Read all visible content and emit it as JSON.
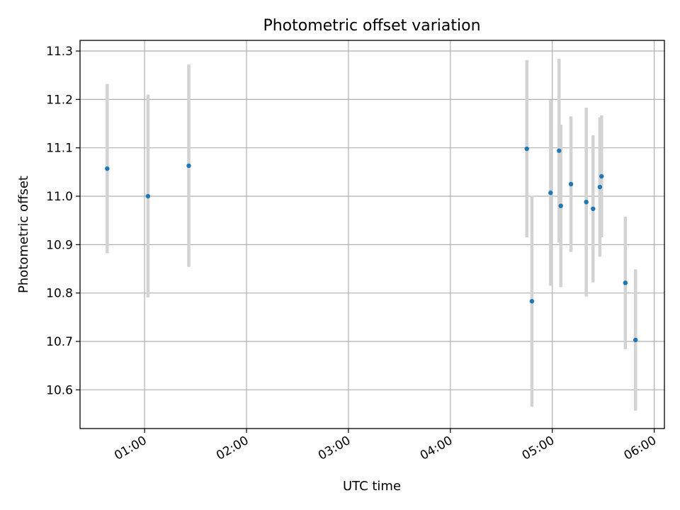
{
  "chart_data": {
    "type": "scatter",
    "title": "Photometric offset variation",
    "xlabel": "UTC time",
    "ylabel": "Photometric offset",
    "x_unit": "UTC time (HH:MM)",
    "xlim": [
      "00:22",
      "06:06"
    ],
    "ylim": [
      10.52,
      11.322
    ],
    "grid": true,
    "marker_color": "#1f77b4",
    "errorbar_color": "#d3d3d3",
    "x_ticks": [
      "01:00",
      "02:00",
      "03:00",
      "04:00",
      "05:00",
      "06:00"
    ],
    "y_ticks": [
      "10.6",
      "10.7",
      "10.8",
      "10.9",
      "11.0",
      "11.1",
      "11.2",
      "11.3"
    ],
    "points": [
      {
        "x": "00:38",
        "y": 11.057,
        "low": 10.882,
        "high": 11.232
      },
      {
        "x": "01:02",
        "y": 11.0,
        "low": 10.791,
        "high": 11.21
      },
      {
        "x": "01:26",
        "y": 11.063,
        "low": 10.854,
        "high": 11.272
      },
      {
        "x": "04:45",
        "y": 11.098,
        "low": 10.915,
        "high": 11.281
      },
      {
        "x": "04:48",
        "y": 10.783,
        "low": 10.565,
        "high": 11.001
      },
      {
        "x": "04:59",
        "y": 11.007,
        "low": 10.815,
        "high": 11.199
      },
      {
        "x": "05:04",
        "y": 11.094,
        "low": 10.904,
        "high": 11.284
      },
      {
        "x": "05:05",
        "y": 10.98,
        "low": 10.812,
        "high": 11.148
      },
      {
        "x": "05:11",
        "y": 11.025,
        "low": 10.885,
        "high": 11.165
      },
      {
        "x": "05:20",
        "y": 10.988,
        "low": 10.793,
        "high": 11.183
      },
      {
        "x": "05:24",
        "y": 10.974,
        "low": 10.822,
        "high": 11.126
      },
      {
        "x": "05:28",
        "y": 11.019,
        "low": 10.875,
        "high": 11.163
      },
      {
        "x": "05:29",
        "y": 11.041,
        "low": 10.915,
        "high": 11.167
      },
      {
        "x": "05:43",
        "y": 10.821,
        "low": 10.684,
        "high": 10.958
      },
      {
        "x": "05:49",
        "y": 10.703,
        "low": 10.557,
        "high": 10.849
      }
    ]
  }
}
